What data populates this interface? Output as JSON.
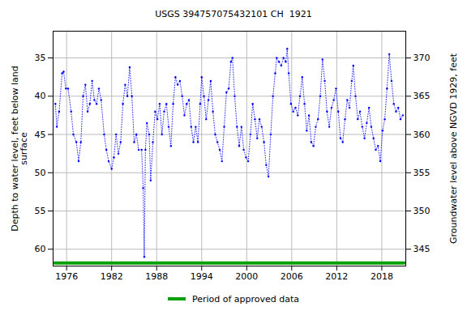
{
  "chart_data": {
    "type": "line",
    "title": "USGS 394757075432101 CH  1921",
    "y_label": "Depth to water level, feet below land\nsurface",
    "y2_label": "Groundwater level above NGVD 1929, feet",
    "color": "#0000ff",
    "marker": "dot",
    "line_style": "dotted",
    "grid": true,
    "xlim": [
      1974.2,
      2021.2
    ],
    "xticks": [
      1976,
      1982,
      1988,
      1994,
      2000,
      2006,
      2012,
      2018
    ],
    "ylim": [
      31.5,
      62.2
    ],
    "yticks": [
      35,
      40,
      45,
      50,
      55,
      60
    ],
    "y2lim": [
      373.5,
      342.8
    ],
    "y2ticks": [
      345,
      350,
      355,
      360,
      365,
      370
    ],
    "x": [
      1974.5,
      1974.7,
      1975,
      1975.4,
      1975.6,
      1975.9,
      1976.2,
      1976.6,
      1976.9,
      1977.3,
      1977.6,
      1977.9,
      1978.2,
      1978.5,
      1978.8,
      1979.1,
      1979.4,
      1979.7,
      1980.0,
      1980.3,
      1980.6,
      1981.0,
      1981.3,
      1981.6,
      1982.0,
      1982.3,
      1982.6,
      1982.9,
      1983.2,
      1983.5,
      1983.8,
      1984.1,
      1984.4,
      1984.7,
      1985.0,
      1985.3,
      1985.6,
      1986.0,
      1986.2,
      1986.35,
      1986.5,
      1986.7,
      1987.0,
      1987.2,
      1987.5,
      1987.8,
      1988.1,
      1988.4,
      1988.7,
      1989.0,
      1989.3,
      1989.6,
      1989.9,
      1990.2,
      1990.5,
      1990.8,
      1991.1,
      1991.4,
      1991.7,
      1992.0,
      1992.3,
      1992.6,
      1992.9,
      1993.2,
      1993.5,
      1993.8,
      1994.0,
      1994.3,
      1994.6,
      1994.9,
      1995.2,
      1995.5,
      1995.8,
      1996.1,
      1996.4,
      1996.7,
      1997.0,
      1997.3,
      1997.6,
      1997.9,
      1998.1,
      1998.4,
      1998.7,
      1999.0,
      1999.3,
      1999.6,
      1999.9,
      2000.2,
      2000.5,
      2000.8,
      2001.1,
      2001.4,
      2001.7,
      2002.0,
      2002.3,
      2002.6,
      2002.9,
      2003.2,
      2003.5,
      2003.8,
      2004.0,
      2004.3,
      2004.6,
      2004.9,
      2005.2,
      2005.4,
      2005.6,
      2005.9,
      2006.2,
      2006.5,
      2006.8,
      2007.1,
      2007.4,
      2007.7,
      2008.0,
      2008.3,
      2008.6,
      2008.9,
      2009.2,
      2009.5,
      2009.8,
      2010.1,
      2010.4,
      2010.7,
      2011.0,
      2011.3,
      2011.6,
      2011.9,
      2012.2,
      2012.5,
      2012.8,
      2013.1,
      2013.4,
      2013.7,
      2014.0,
      2014.2,
      2014.5,
      2014.8,
      2015.1,
      2015.4,
      2015.7,
      2016.0,
      2016.3,
      2016.6,
      2016.9,
      2017.2,
      2017.5,
      2017.8,
      2018.1,
      2018.4,
      2018.7,
      2019.0,
      2019.3,
      2019.6,
      2019.9,
      2020.2,
      2020.5,
      2020.8
    ],
    "values": [
      41,
      44,
      42,
      37,
      36.8,
      39,
      39,
      42,
      45,
      46,
      48.5,
      46,
      40,
      38.5,
      42,
      41,
      38,
      40.5,
      41,
      39,
      40.5,
      45,
      47,
      48.5,
      49.5,
      48,
      45,
      47.5,
      46,
      41,
      38.5,
      40,
      36.2,
      40,
      46,
      45,
      47,
      47,
      52,
      61,
      47,
      43.5,
      45,
      51,
      46,
      42,
      43,
      41,
      45,
      42,
      41,
      44,
      46.5,
      41,
      37.5,
      38.5,
      38,
      40,
      42.5,
      41,
      40.5,
      44,
      46,
      44,
      46,
      41,
      37.5,
      40,
      43,
      40.5,
      38,
      42,
      45,
      46,
      47,
      48.5,
      44,
      39.5,
      39,
      35.5,
      35,
      40,
      44,
      46.5,
      44,
      47,
      48,
      48.5,
      45,
      41,
      43,
      45.5,
      43,
      44,
      46,
      49,
      50.5,
      45,
      40,
      37,
      35,
      35.5,
      36,
      35,
      35.5,
      33.8,
      37,
      41,
      42,
      41.5,
      42.5,
      40,
      37.5,
      41,
      44.5,
      42.5,
      46,
      46.5,
      44,
      43,
      40,
      35.2,
      38,
      42,
      44,
      41.5,
      40.5,
      39,
      42,
      45.5,
      46,
      43,
      40.5,
      41.5,
      38,
      36,
      40,
      43,
      42,
      44,
      45.5,
      43.5,
      41.5,
      44,
      45.5,
      47,
      46.5,
      48.5,
      44.5,
      43,
      39,
      34.5,
      38,
      41,
      42,
      41.5,
      43,
      42.5
    ],
    "approved_period": {
      "name": "Period of approved data",
      "color": "#00a000",
      "x": [
        1974.4,
        2021.0
      ],
      "y": 61.8
    }
  }
}
